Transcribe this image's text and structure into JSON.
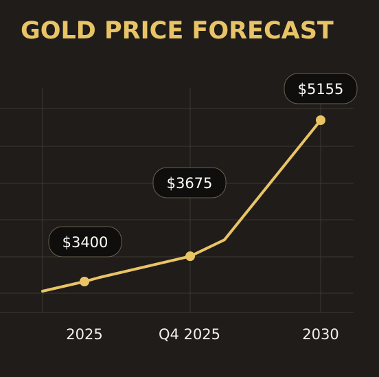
{
  "chart_data": {
    "type": "line",
    "title": "GOLD PRICE FORECAST",
    "xlabel": "",
    "ylabel": "",
    "categories": [
      "2025",
      "Q4 2025",
      "2030"
    ],
    "points": [
      {
        "x": "2025",
        "value": 3400,
        "label": "$3400"
      },
      {
        "x": "Q4 2025",
        "value": 3675,
        "label": "$3675"
      },
      {
        "x": "2030",
        "value": 5155,
        "label": "$5155"
      }
    ],
    "grid": true,
    "legend": "none"
  },
  "colors": {
    "background": "#1f1c19",
    "accent": "#e9c466",
    "grid": "#3d3832",
    "tick_text": "#f4f1ea",
    "label_box": "#0f0e0c",
    "label_border": "#6a604f"
  }
}
